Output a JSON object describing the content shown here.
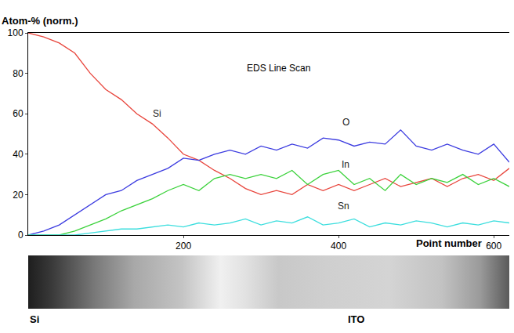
{
  "chart_data": {
    "type": "line",
    "title": "EDS Line Scan",
    "x_label": "Point number",
    "y_label": "Atom-% (norm.)",
    "x": [
      0,
      20,
      40,
      60,
      80,
      100,
      120,
      140,
      160,
      180,
      200,
      220,
      240,
      260,
      280,
      300,
      320,
      340,
      360,
      380,
      400,
      420,
      440,
      460,
      480,
      500,
      520,
      540,
      560,
      580,
      600,
      620
    ],
    "series": [
      {
        "name": "Si",
        "color": "#e8453c",
        "values": [
          100,
          98,
          95,
          90,
          80,
          72,
          67,
          60,
          55,
          48,
          40,
          37,
          32,
          28,
          23,
          20,
          22,
          20,
          25,
          22,
          25,
          22,
          25,
          28,
          24,
          26,
          28,
          24,
          28,
          30,
          27,
          33
        ]
      },
      {
        "name": "O",
        "color": "#3c3ce0",
        "values": [
          0,
          2,
          5,
          10,
          15,
          20,
          22,
          27,
          30,
          33,
          38,
          37,
          40,
          42,
          40,
          44,
          42,
          45,
          43,
          48,
          47,
          44,
          46,
          45,
          52,
          44,
          42,
          45,
          42,
          40,
          45,
          36
        ]
      },
      {
        "name": "In",
        "color": "#3cd23c",
        "values": [
          0,
          0,
          0,
          2,
          5,
          8,
          12,
          15,
          18,
          22,
          25,
          22,
          28,
          30,
          28,
          30,
          28,
          32,
          25,
          30,
          32,
          25,
          28,
          22,
          30,
          25,
          28,
          26,
          30,
          25,
          28,
          24
        ]
      },
      {
        "name": "Sn",
        "color": "#3cdede",
        "values": [
          0,
          0,
          0,
          0,
          1,
          2,
          3,
          3,
          4,
          5,
          4,
          6,
          5,
          6,
          8,
          5,
          7,
          6,
          9,
          5,
          6,
          8,
          4,
          6,
          5,
          7,
          6,
          4,
          6,
          5,
          7,
          6
        ]
      }
    ],
    "xlim": [
      0,
      620
    ],
    "ylim": [
      0,
      100
    ],
    "xticks": [
      200,
      400,
      600
    ],
    "yticks": [
      0,
      20,
      40,
      60,
      80,
      100
    ],
    "grid": false
  },
  "image": {
    "labels": [
      "Si",
      "ITO"
    ]
  }
}
